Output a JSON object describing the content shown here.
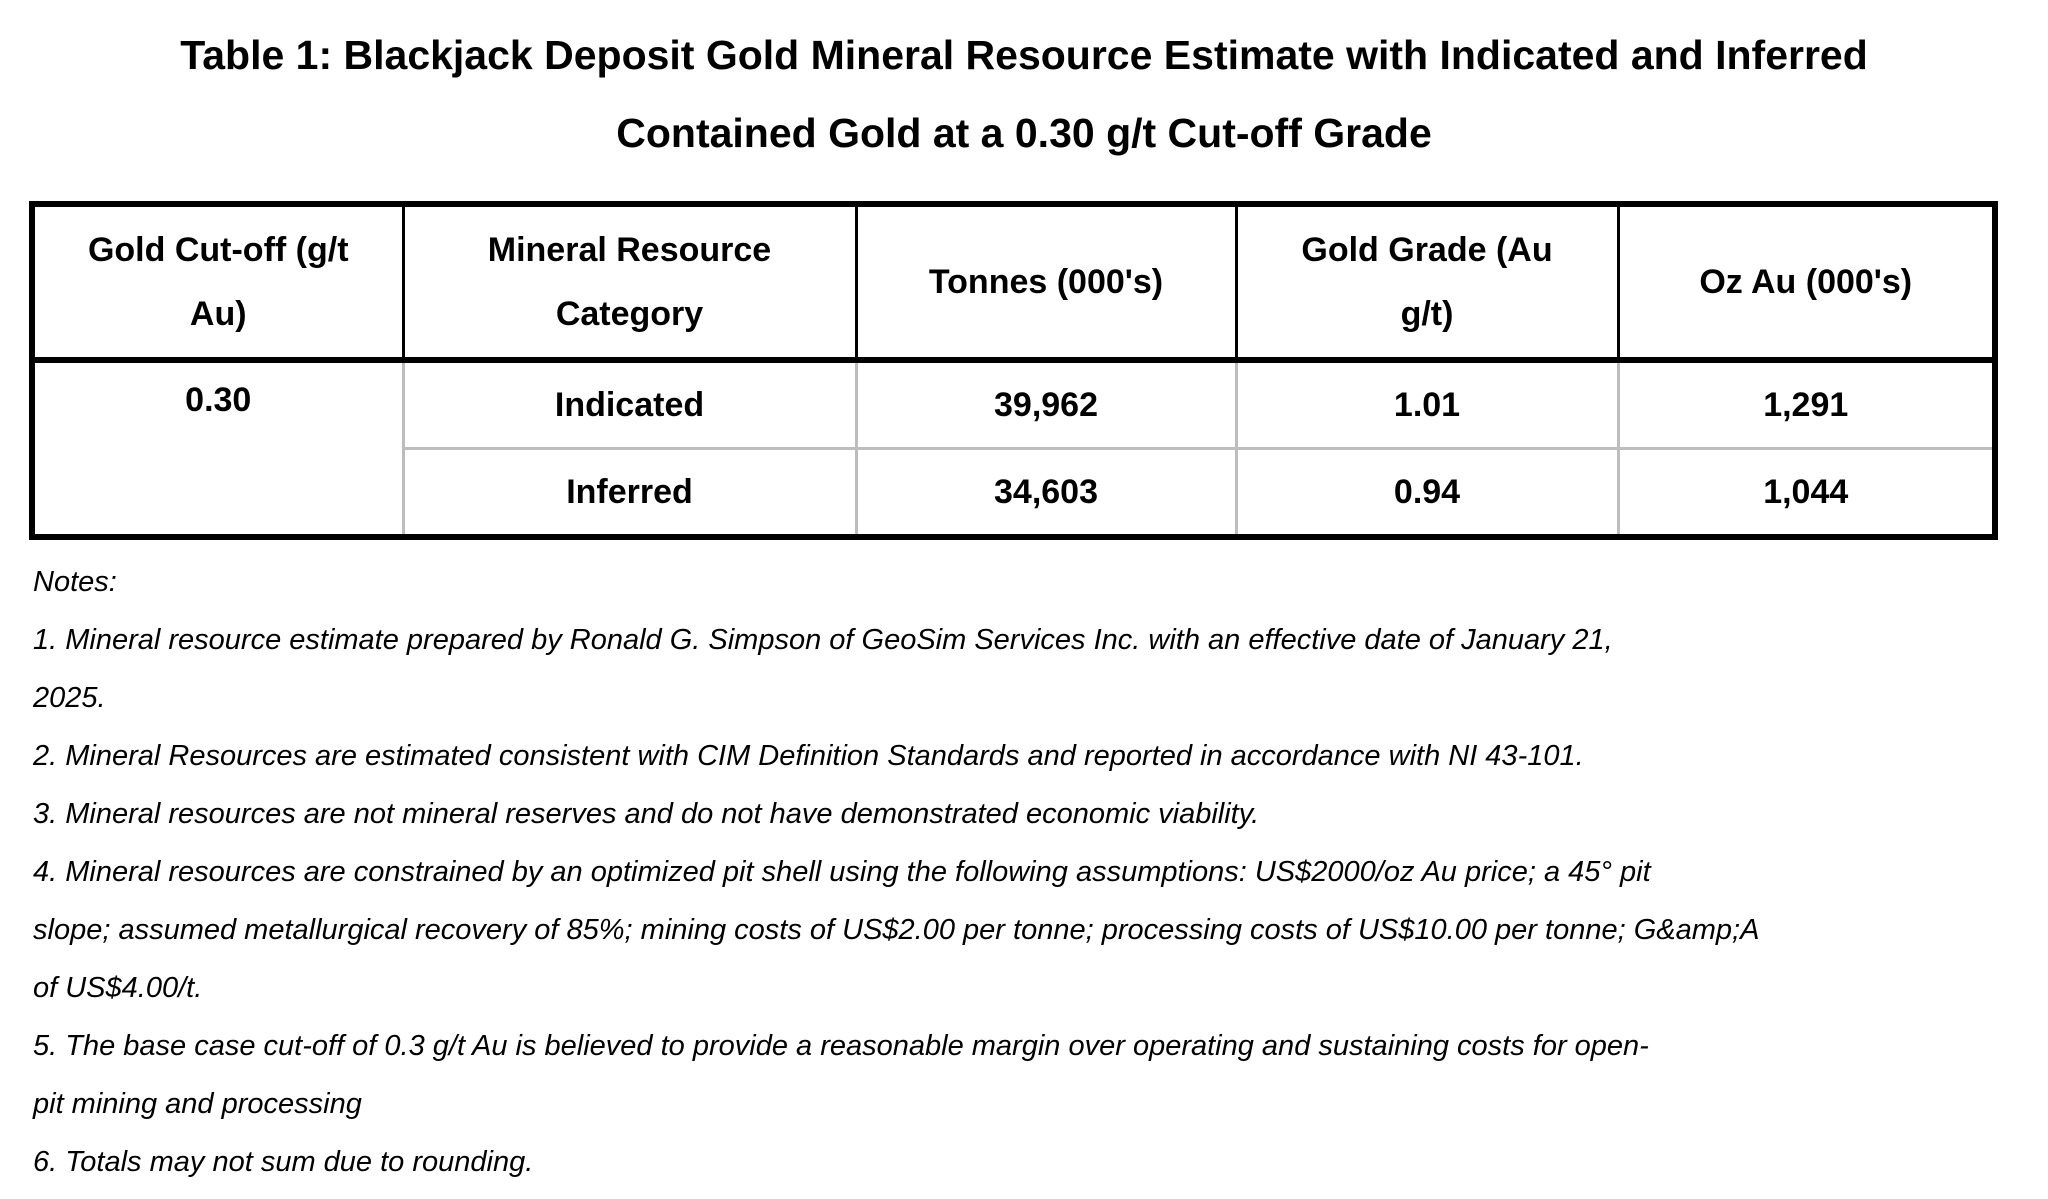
{
  "title": {
    "line1": "Table 1: Blackjack Deposit Gold Mineral Resource Estimate with Indicated and Inferred",
    "line2": "Contained Gold at a 0.30 g/t Cut-off Grade"
  },
  "table": {
    "headers": [
      [
        "Gold Cut-off (g/t",
        "Au)"
      ],
      [
        "Mineral Resource",
        "Category"
      ],
      [
        "Tonnes (000's)"
      ],
      [
        "Gold Grade (Au",
        "g/t)"
      ],
      [
        "Oz Au (000's)"
      ]
    ],
    "cutoff": "0.30",
    "rows": [
      {
        "category": "Indicated",
        "tonnes": "39,962",
        "grade": "1.01",
        "oz": "1,291"
      },
      {
        "category": "Inferred",
        "tonnes": "34,603",
        "grade": "0.94",
        "oz": "1,044"
      }
    ]
  },
  "notes": {
    "heading": "Notes:",
    "lines": [
      "1. Mineral resource estimate prepared by Ronald G. Simpson of GeoSim Services Inc. with an effective date of January 21,",
      "2025.",
      "2. Mineral Resources are estimated consistent with CIM Definition Standards and reported in accordance with NI 43-101.",
      "3. Mineral resources are not mineral reserves and do not have demonstrated economic viability.",
      "4. Mineral resources are constrained by an optimized pit shell using the following assumptions: US$2000/oz Au price; a 45° pit",
      "slope; assumed metallurgical recovery of 85%; mining costs of US$2.00 per tonne; processing costs of US$10.00 per tonne; G&amp;A",
      "of US$4.00/t.",
      "5. The base case cut-off of 0.3 g/t Au is believed to provide a reasonable margin over operating and sustaining costs for open-",
      "pit mining and processing",
      "6. Totals may not sum due to rounding."
    ]
  }
}
